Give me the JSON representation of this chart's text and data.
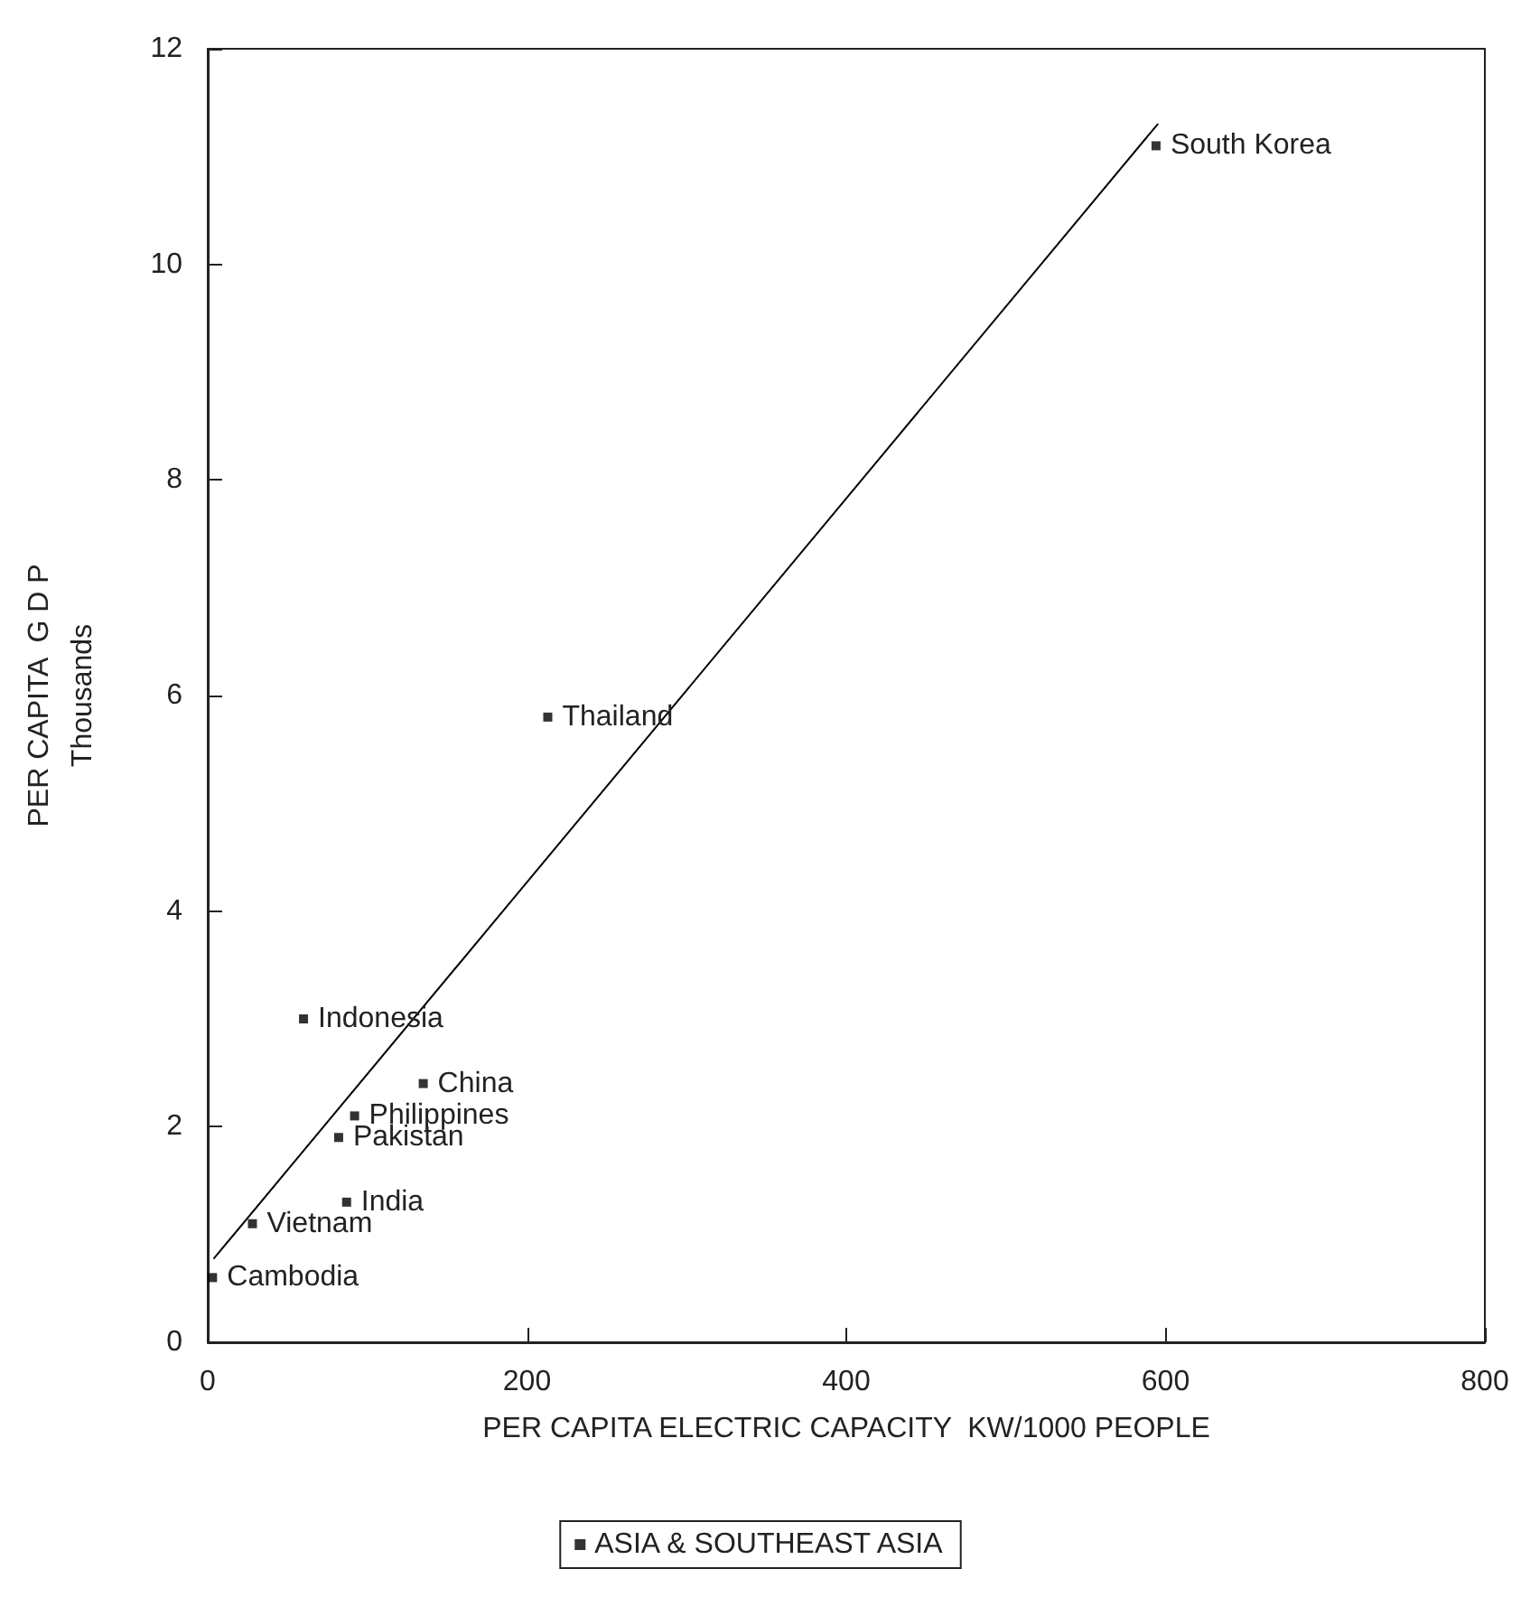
{
  "chart_data": {
    "type": "scatter",
    "xlabel": "PER CAPITA ELECTRIC CAPACITY  KW/1000 PEOPLE",
    "ylabel": "PER CAPITA  G D P\nThousands",
    "xlim": [
      0,
      800
    ],
    "xticks": [
      0,
      200,
      400,
      600,
      800
    ],
    "ylim": [
      0,
      12
    ],
    "yticks": [
      0,
      2,
      4,
      6,
      8,
      10,
      12
    ],
    "grid": false,
    "legend": "bottom",
    "marker": "square",
    "series": [
      {
        "name": "ASIA & SOUTHEAST ASIA",
        "color": "#000000",
        "x": [
          594,
          213,
          60,
          135,
          92,
          82,
          87,
          28,
          3
        ],
        "values": [
          11.1,
          5.8,
          3.0,
          2.4,
          2.1,
          1.9,
          1.3,
          1.1,
          0.6
        ]
      },
      {
        "type": "line",
        "color": "#000000",
        "x": [
          4,
          595
        ],
        "values": [
          0.78,
          11.3
        ],
        "marker": "none",
        "line_style": "solid"
      }
    ],
    "annotations": [
      {
        "text": "South Korea",
        "x": 594,
        "y": 11.1
      },
      {
        "text": "Thailand",
        "x": 213,
        "y": 5.8
      },
      {
        "text": "Indonesia",
        "x": 60,
        "y": 3.0
      },
      {
        "text": "China",
        "x": 135,
        "y": 2.4
      },
      {
        "text": "Philippines",
        "x": 92,
        "y": 2.1
      },
      {
        "text": "Pakistan",
        "x": 82,
        "y": 1.9
      },
      {
        "text": "India",
        "x": 87,
        "y": 1.3
      },
      {
        "text": "Vietnam",
        "x": 28,
        "y": 1.1
      },
      {
        "text": "Cambodia",
        "x": 3,
        "y": 0.6
      }
    ]
  }
}
